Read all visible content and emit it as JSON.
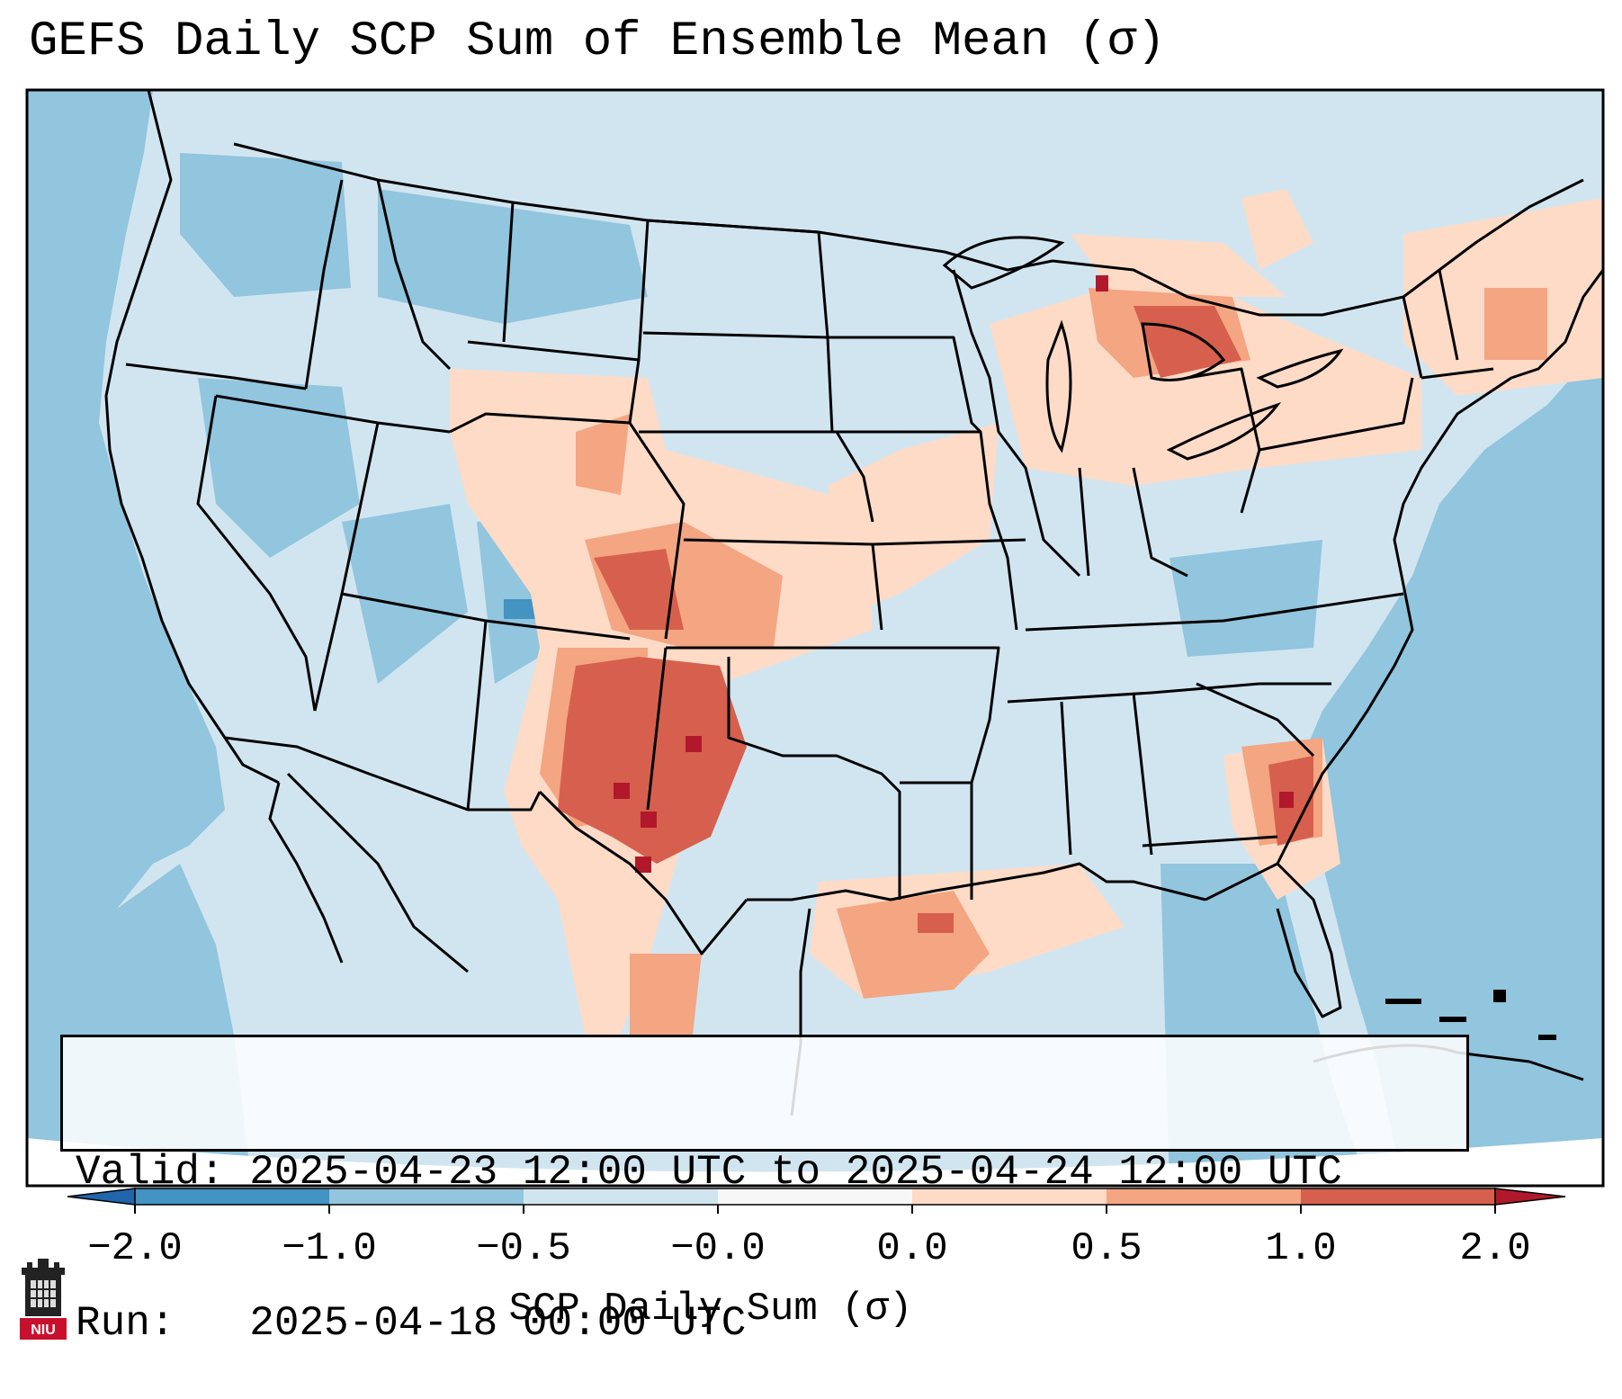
{
  "title": "GEFS Daily SCP Sum of Ensemble Mean (σ)",
  "info_box": {
    "valid_line": "Valid: 2025-04-23 12:00 UTC to 2025-04-24 12:00 UTC",
    "run_line": "Run:   2025-04-18 00:00 UTC"
  },
  "colorbar": {
    "label": "SCP Daily Sum (σ)",
    "tick_labels": [
      "−2.0",
      "−1.0",
      "−0.5",
      "−0.0",
      "0.0",
      "0.5",
      "1.0",
      "2.0"
    ],
    "colors": [
      "#4393c3",
      "#92c5de",
      "#d1e5f0",
      "#f7f7f7",
      "#fddbc7",
      "#f4a582",
      "#d6604d",
      "#b2182b"
    ],
    "under_color": "#2166ac",
    "over_color": "#b2182b"
  },
  "logo": {
    "text": "NIU",
    "color": "#c8102e"
  },
  "map": {
    "projection": "Lambert Conformal (CONUS)",
    "background_color": "#d1e5f0",
    "ocean_color": "#92c5de",
    "features": [
      "state-borders",
      "coastlines",
      "great-lakes",
      "country-borders"
    ]
  }
}
